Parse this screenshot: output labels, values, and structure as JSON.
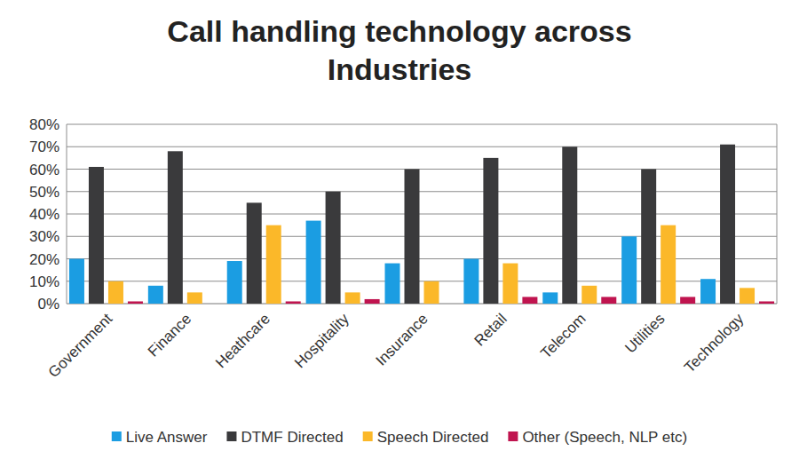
{
  "chart_data": {
    "type": "bar",
    "title": "Call handling technology across Industries",
    "categories": [
      "Government",
      "Finance",
      "Heathcare",
      "Hospitality",
      "Insurance",
      "Retail",
      "Telecom",
      "Utilities",
      "Technology"
    ],
    "series": [
      {
        "name": "Live Answer",
        "color": "#1b9de2",
        "values": [
          20,
          8,
          19,
          37,
          18,
          20,
          5,
          30,
          11
        ]
      },
      {
        "name": "DTMF Directed",
        "color": "#3a3a3c",
        "values": [
          61,
          68,
          45,
          50,
          60,
          65,
          70,
          60,
          71
        ]
      },
      {
        "name": "Speech Directed",
        "color": "#fbb829",
        "values": [
          10,
          5,
          35,
          5,
          10,
          18,
          8,
          35,
          7
        ]
      },
      {
        "name": "Other (Speech, NLP etc)",
        "color": "#c0144f",
        "values": [
          1,
          0,
          1,
          2,
          0,
          3,
          3,
          3,
          1
        ]
      }
    ],
    "ylim": [
      0,
      80
    ],
    "yticks": [
      {
        "value": 0,
        "label": "0%"
      },
      {
        "value": 10,
        "label": "10%"
      },
      {
        "value": 20,
        "label": "20%"
      },
      {
        "value": 30,
        "label": "30%"
      },
      {
        "value": 40,
        "label": "40%"
      },
      {
        "value": 50,
        "label": "50%"
      },
      {
        "value": 60,
        "label": "60%"
      },
      {
        "value": 70,
        "label": "70%"
      },
      {
        "value": 80,
        "label": "80%"
      }
    ],
    "grid": true,
    "legend": "bottom"
  }
}
